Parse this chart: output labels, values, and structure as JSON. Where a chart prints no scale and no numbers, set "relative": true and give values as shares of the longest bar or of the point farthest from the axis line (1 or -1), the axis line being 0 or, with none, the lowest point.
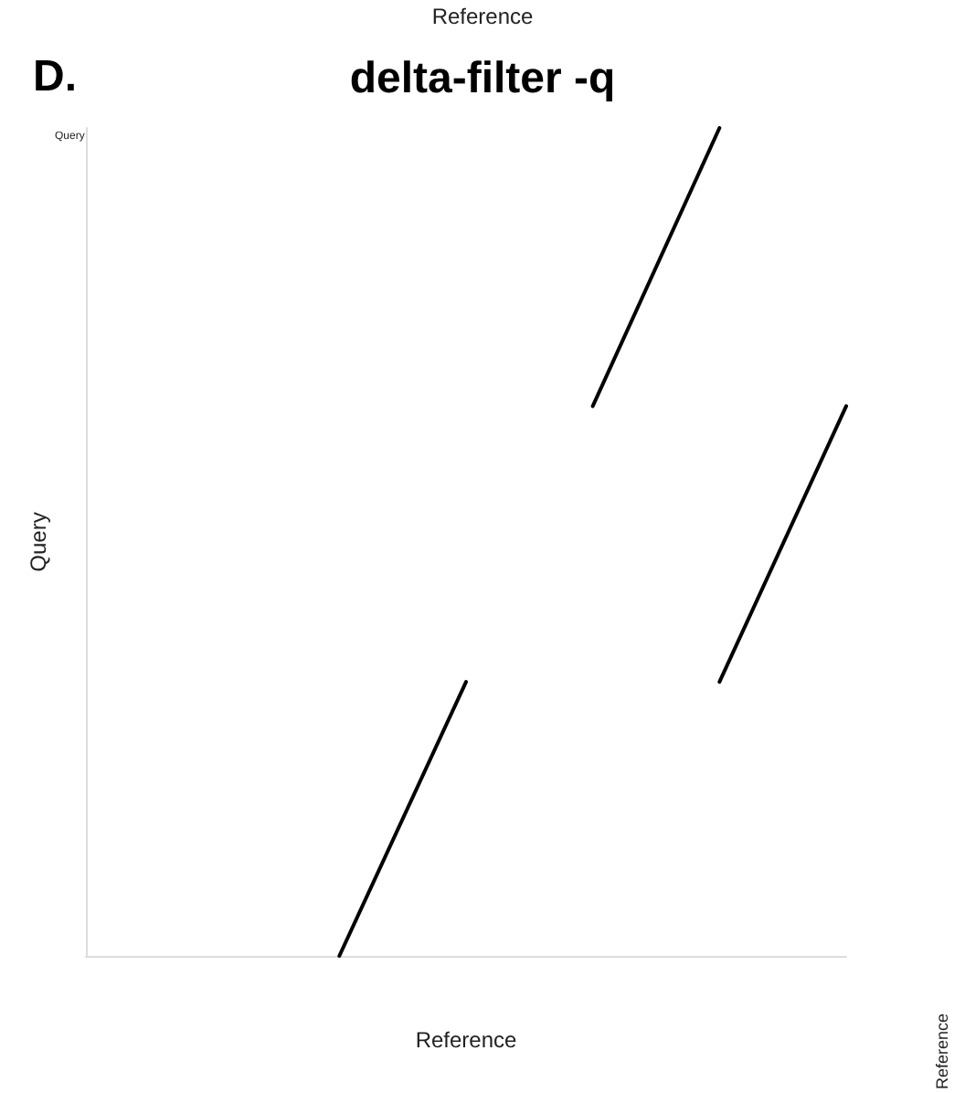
{
  "chart_data": {
    "type": "line",
    "title": "delta-filter -q",
    "xlabel": "Reference",
    "ylabel": "Query",
    "relative": true,
    "grid": false,
    "marker": "none",
    "line_style": "solid",
    "annotations": [
      "Reference",
      "D.",
      "Query",
      "Reference"
    ],
    "categories": [
      null,
      null,
      null,
      null,
      null,
      null,
      null
    ],
    "series": [
      {
        "color": "#000000",
        "values": [
          null,
          null,
          0,
          0.331,
          null,
          null,
          null
        ]
      },
      {
        "color": "#000000",
        "values": [
          null,
          null,
          null,
          null,
          0.664,
          1,
          null
        ]
      },
      {
        "color": "#000000",
        "values": [
          null,
          null,
          null,
          null,
          null,
          0.331,
          0.664
        ]
      }
    ]
  }
}
